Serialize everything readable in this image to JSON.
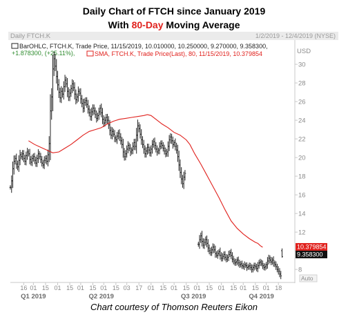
{
  "title": {
    "line1": "Daily Chart of FTCH since January 2019",
    "line2_pre": "With ",
    "line2_accent": "80-Day",
    "line2_post": " Moving Average"
  },
  "credit": "Chart courtesy of Thomson Reuters Eikon",
  "colors": {
    "accent": "#e0201c",
    "price": "#222222",
    "ma": "#e0201c",
    "header_bg": "#ebebeb",
    "axis_text": "#8a8a8a"
  },
  "chart_data": {
    "type": "ohlc",
    "panel_title": "Daily FTCH.K",
    "date_range": "1/2/2019 - 12/4/2019 (NYSE)",
    "currency": "USD",
    "legend": {
      "line1": "BarOHLC, FTCH.K, Trade Price, 11/15/2019, 10.010000, 10.250000, 9.270000, 9.358300,",
      "line2_change": "+1.878300, (+25.11%),",
      "line2_sma": "SMA, FTCH.K, Trade Price(Last), 80, 11/15/2019, 10.379854"
    },
    "ylim": [
      6.6,
      32.6
    ],
    "yticks": [
      8,
      10,
      12,
      14,
      16,
      18,
      20,
      22,
      24,
      26,
      28,
      30
    ],
    "ylabels": [
      "8",
      "10",
      "12",
      "14",
      "16",
      "18",
      "20",
      "22",
      "24",
      "26",
      "28",
      "30"
    ],
    "xlim": [
      0,
      226
    ],
    "xticks_day": [
      {
        "x": 11,
        "label": "16"
      },
      {
        "x": 19,
        "label": "01"
      },
      {
        "x": 29,
        "label": "15"
      },
      {
        "x": 39,
        "label": "01"
      },
      {
        "x": 49,
        "label": "15"
      },
      {
        "x": 58,
        "label": "01"
      },
      {
        "x": 68,
        "label": "15"
      },
      {
        "x": 77,
        "label": "01"
      },
      {
        "x": 87,
        "label": "15"
      },
      {
        "x": 96,
        "label": "03"
      },
      {
        "x": 106,
        "label": "17"
      },
      {
        "x": 116,
        "label": "01"
      },
      {
        "x": 126,
        "label": "15"
      },
      {
        "x": 135,
        "label": "01"
      },
      {
        "x": 145,
        "label": "15"
      },
      {
        "x": 154,
        "label": "01"
      },
      {
        "x": 164,
        "label": "15"
      },
      {
        "x": 174,
        "label": "01"
      },
      {
        "x": 184,
        "label": "15"
      },
      {
        "x": 192,
        "label": "01"
      },
      {
        "x": 202,
        "label": "15"
      },
      {
        "x": 211,
        "label": "01"
      },
      {
        "x": 221,
        "label": "18"
      }
    ],
    "xticks_quarter": [
      {
        "x": 19,
        "label": "Q1 2019"
      },
      {
        "x": 75,
        "label": "Q2 2019"
      },
      {
        "x": 151,
        "label": "Q3 2019"
      },
      {
        "x": 207,
        "label": "Q4 2019"
      }
    ],
    "close": [
      16.8,
      17.5,
      18.8,
      19.6,
      19.9,
      19.3,
      19.0,
      19.7,
      20.3,
      20.1,
      20.4,
      19.9,
      19.6,
      20.2,
      20.6,
      20.4,
      19.8,
      19.5,
      19.9,
      20.1,
      19.7,
      19.4,
      19.9,
      20.4,
      20.1,
      19.8,
      19.4,
      19.2,
      19.7,
      19.9,
      19.6,
      20.3,
      21.5,
      25.0,
      26.5,
      29.5,
      30.6,
      29.8,
      28.7,
      27.8,
      27.0,
      26.4,
      27.1,
      26.8,
      27.6,
      28.3,
      27.9,
      27.1,
      26.5,
      26.9,
      27.4,
      27.9,
      27.5,
      26.8,
      26.2,
      26.5,
      27.1,
      26.9,
      26.3,
      25.8,
      25.3,
      25.9,
      26.1,
      25.7,
      25.2,
      24.8,
      24.4,
      24.9,
      25.3,
      25.0,
      24.6,
      24.2,
      24.5,
      24.9,
      25.3,
      24.8,
      24.1,
      23.7,
      24.0,
      24.3,
      24.0,
      23.5,
      22.9,
      22.4,
      22.8,
      22.5,
      22.1,
      21.9,
      22.3,
      22.6,
      22.2,
      21.8,
      21.4,
      20.6,
      20.1,
      20.4,
      20.9,
      21.3,
      21.0,
      20.6,
      20.8,
      21.2,
      21.6,
      21.2,
      22.4,
      23.4,
      23.1,
      22.5,
      21.9,
      21.4,
      20.9,
      20.4,
      20.7,
      21.1,
      20.8,
      20.5,
      20.9,
      21.4,
      21.7,
      21.3,
      20.9,
      20.6,
      20.8,
      21.2,
      21.5,
      21.3,
      21.0,
      20.7,
      20.4,
      20.6,
      21.2,
      21.9,
      22.2,
      21.8,
      21.4,
      21.6,
      21.2,
      20.8,
      20.1,
      19.2,
      18.4,
      17.7,
      17.2,
      17.9,
      18.3,
      null,
      null,
      null,
      null,
      null,
      null,
      null,
      null,
      null,
      null,
      10.7,
      11.2,
      11.6,
      11.0,
      10.6,
      10.9,
      11.2,
      10.8,
      10.3,
      10.0,
      9.8,
      10.1,
      10.4,
      10.1,
      9.7,
      9.5,
      9.7,
      9.9,
      9.5,
      9.2,
      9.4,
      9.6,
      9.3,
      9.1,
      9.3,
      9.6,
      9.8,
      9.5,
      9.1,
      8.9,
      8.7,
      8.8,
      9.0,
      8.7,
      8.5,
      8.6,
      8.4,
      8.3,
      8.5,
      8.4,
      8.2,
      8.3,
      8.4,
      8.2,
      8.0,
      8.2,
      8.4,
      8.3,
      8.1,
      8.4,
      8.7,
      8.8,
      8.6,
      8.4,
      8.2,
      8.3,
      8.5,
      8.9,
      9.2,
      9.0,
      8.8,
      9.0,
      8.7,
      8.5,
      8.3,
      8.0,
      7.8,
      7.5,
      7.3,
      9.36
    ],
    "ma_points": [
      [
        15,
        21.8
      ],
      [
        20,
        21.4
      ],
      [
        25,
        21.1
      ],
      [
        30,
        20.8
      ],
      [
        35,
        20.5
      ],
      [
        40,
        20.6
      ],
      [
        45,
        21.0
      ],
      [
        50,
        21.4
      ],
      [
        55,
        21.9
      ],
      [
        60,
        22.4
      ],
      [
        65,
        22.8
      ],
      [
        70,
        23.0
      ],
      [
        75,
        23.2
      ],
      [
        80,
        23.6
      ],
      [
        85,
        23.9
      ],
      [
        90,
        24.1
      ],
      [
        95,
        24.2
      ],
      [
        100,
        24.3
      ],
      [
        105,
        24.4
      ],
      [
        110,
        24.5
      ],
      [
        113,
        24.6
      ],
      [
        116,
        24.5
      ],
      [
        120,
        24.1
      ],
      [
        125,
        23.6
      ],
      [
        130,
        23.2
      ],
      [
        135,
        22.7
      ],
      [
        140,
        22.4
      ],
      [
        145,
        21.9
      ],
      [
        148,
        21.4
      ],
      [
        152,
        20.4
      ],
      [
        157,
        19.3
      ],
      [
        162,
        18.1
      ],
      [
        167,
        16.9
      ],
      [
        172,
        15.7
      ],
      [
        177,
        14.4
      ],
      [
        182,
        13.2
      ],
      [
        187,
        12.4
      ],
      [
        192,
        11.8
      ],
      [
        197,
        11.3
      ],
      [
        202,
        10.9
      ],
      [
        204,
        10.8
      ],
      [
        206,
        10.55
      ],
      [
        208,
        10.38
      ]
    ],
    "last_price_label": "9.358300",
    "ma_label": "10.379854",
    "auto_label": "Auto"
  }
}
